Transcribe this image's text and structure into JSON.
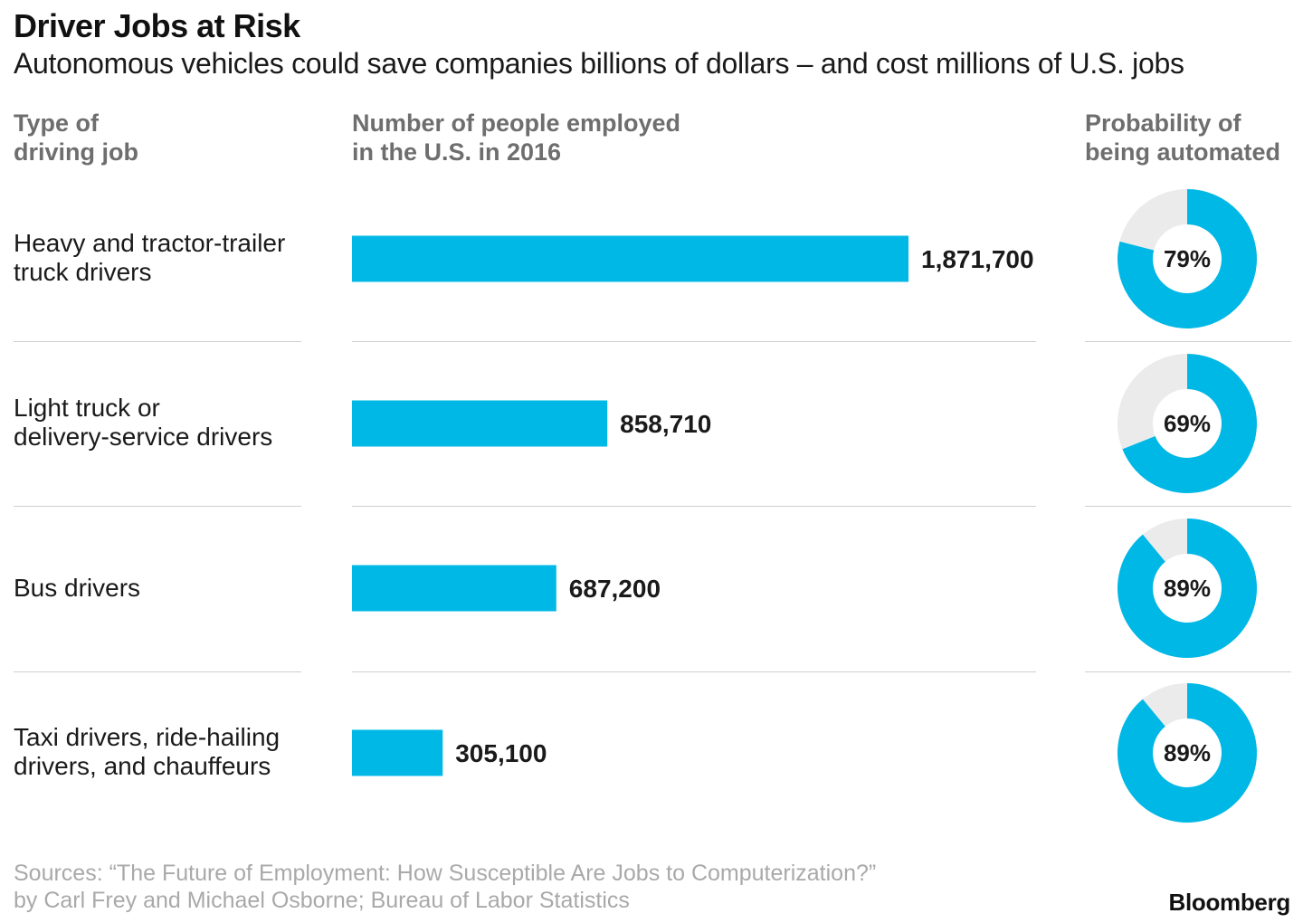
{
  "title": "Driver Jobs at Risk",
  "subtitle": "Autonomous vehicles could save companies billions of dollars – and cost millions of U.S. jobs",
  "headers": {
    "type": [
      "Type of",
      "driving job"
    ],
    "employed": [
      "Number of people employed",
      "in the U.S. in 2016"
    ],
    "probability": [
      "Probability of",
      "being automated"
    ]
  },
  "rows": [
    {
      "label_lines": [
        "Heavy and tractor-trailer",
        "truck drivers"
      ]
    },
    {
      "label_lines": [
        "Light truck or",
        "delivery-service drivers"
      ]
    },
    {
      "label_lines": [
        "Bus drivers"
      ]
    },
    {
      "label_lines": [
        "Taxi drivers, ride-hailing",
        "drivers, and chauffeurs"
      ]
    }
  ],
  "chart_data": {
    "type": "bar",
    "orientation": "horizontal",
    "categories": [
      "Heavy and tractor-trailer truck drivers",
      "Light truck or delivery-service drivers",
      "Bus drivers",
      "Taxi drivers, ride-hailing drivers, and chauffeurs"
    ],
    "series": [
      {
        "name": "Number of people employed in the U.S. in 2016",
        "values": [
          1871700,
          858710,
          687200,
          305100
        ],
        "labels": [
          "1,871,700",
          "858,710",
          "687,200",
          "305,100"
        ]
      },
      {
        "name": "Probability of being automated",
        "type": "donut",
        "values": [
          79,
          69,
          89,
          89
        ],
        "labels": [
          "79%",
          "69%",
          "89%",
          "89%"
        ]
      }
    ],
    "xlim": [
      0,
      1871700
    ],
    "bar_color": "#00b8e6",
    "donut_remainder_color": "#ebebeb"
  },
  "source_lines": [
    "Sources: “The Future of Employment: How Susceptible Are Jobs to Computerization?”",
    "by Carl Frey and Michael Osborne; Bureau of Labor Statistics"
  ],
  "brand": "Bloomberg"
}
